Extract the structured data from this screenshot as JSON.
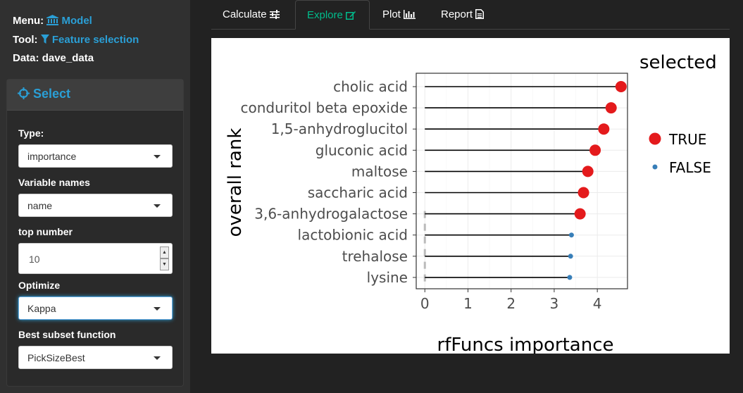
{
  "sidebar": {
    "menu_label": "Menu:",
    "menu_value": "Model",
    "tool_label": "Tool:",
    "tool_value": "Feature selection",
    "data_label": "Data:",
    "data_value": "dave_data",
    "panel_title": "Select",
    "fields": {
      "type_label": "Type:",
      "type_value": "importance",
      "varnames_label": "Variable names",
      "varnames_value": "name",
      "topnum_label": "top number",
      "topnum_value": "10",
      "optimize_label": "Optimize",
      "optimize_value": "Kappa",
      "subset_label": "Best subset function",
      "subset_value": "PickSizeBest"
    }
  },
  "tabs": [
    {
      "label": "Calculate",
      "icon": "sliders-icon"
    },
    {
      "label": "Explore",
      "icon": "edit-icon"
    },
    {
      "label": "Plot",
      "icon": "bar-chart-icon"
    },
    {
      "label": "Report",
      "icon": "file-icon"
    }
  ],
  "active_tab": "Explore",
  "chart_data": {
    "type": "scatter",
    "xlabel": "rfFuncs importance",
    "ylabel": "overall rank",
    "xlim": [
      -0.2,
      4.7
    ],
    "xticks": [
      0,
      1,
      2,
      3,
      4
    ],
    "categories": [
      "cholic acid",
      "conduritol beta epoxide",
      "1,5-anhydroglucitol",
      "gluconic acid",
      "maltose",
      "saccharic acid",
      "3,6-anhydrogalactose",
      "lactobionic acid",
      "trehalose",
      "lysine"
    ],
    "values": [
      4.55,
      4.32,
      4.15,
      3.95,
      3.78,
      3.68,
      3.6,
      3.4,
      3.38,
      3.36
    ],
    "selected": [
      "TRUE",
      "TRUE",
      "TRUE",
      "TRUE",
      "TRUE",
      "TRUE",
      "TRUE",
      "FALSE",
      "FALSE",
      "FALSE"
    ],
    "legend_title": "selected",
    "legend": [
      {
        "label": "TRUE",
        "color": "#e41a1c"
      },
      {
        "label": "FALSE",
        "color": "#377eb8"
      }
    ],
    "legend_position": "right",
    "grid": true
  }
}
